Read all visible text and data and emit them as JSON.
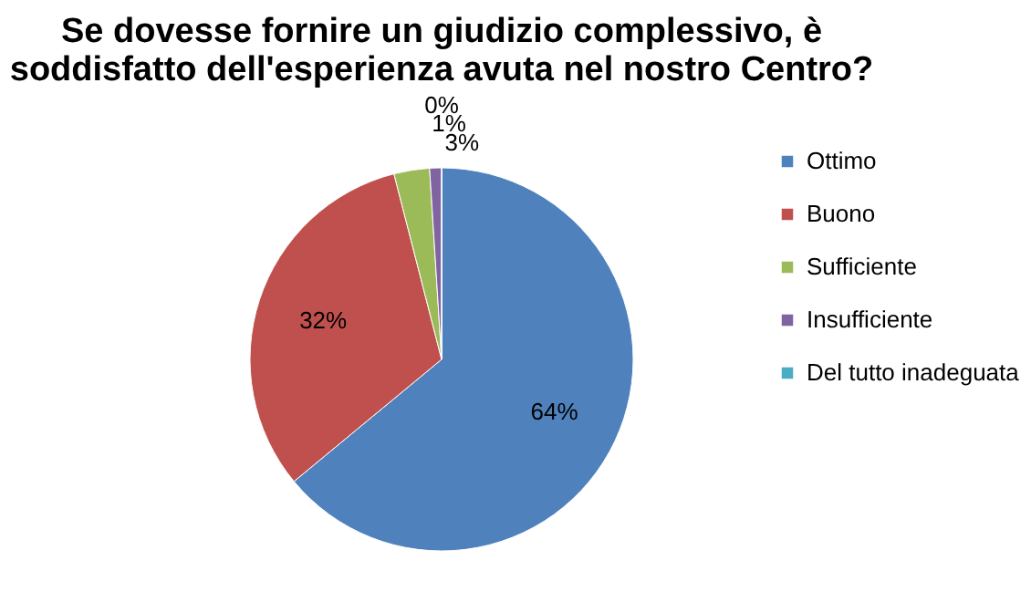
{
  "chart_data": {
    "type": "pie",
    "title": "Se dovesse fornire un giudizio complessivo, è soddisfatto dell'esperienza avuta nel nostro Centro?",
    "categories": [
      "Ottimo",
      "Buono",
      "Sufficiente",
      "Insufficiente",
      "Del tutto inadeguata"
    ],
    "values": [
      64,
      32,
      3,
      1,
      0
    ],
    "value_labels": [
      "64%",
      "32%",
      "3%",
      "1%",
      "0%"
    ],
    "colors": [
      "#4f81bd",
      "#c0504d",
      "#9bbb59",
      "#8064a2",
      "#4bacc6"
    ],
    "legend": "right"
  }
}
